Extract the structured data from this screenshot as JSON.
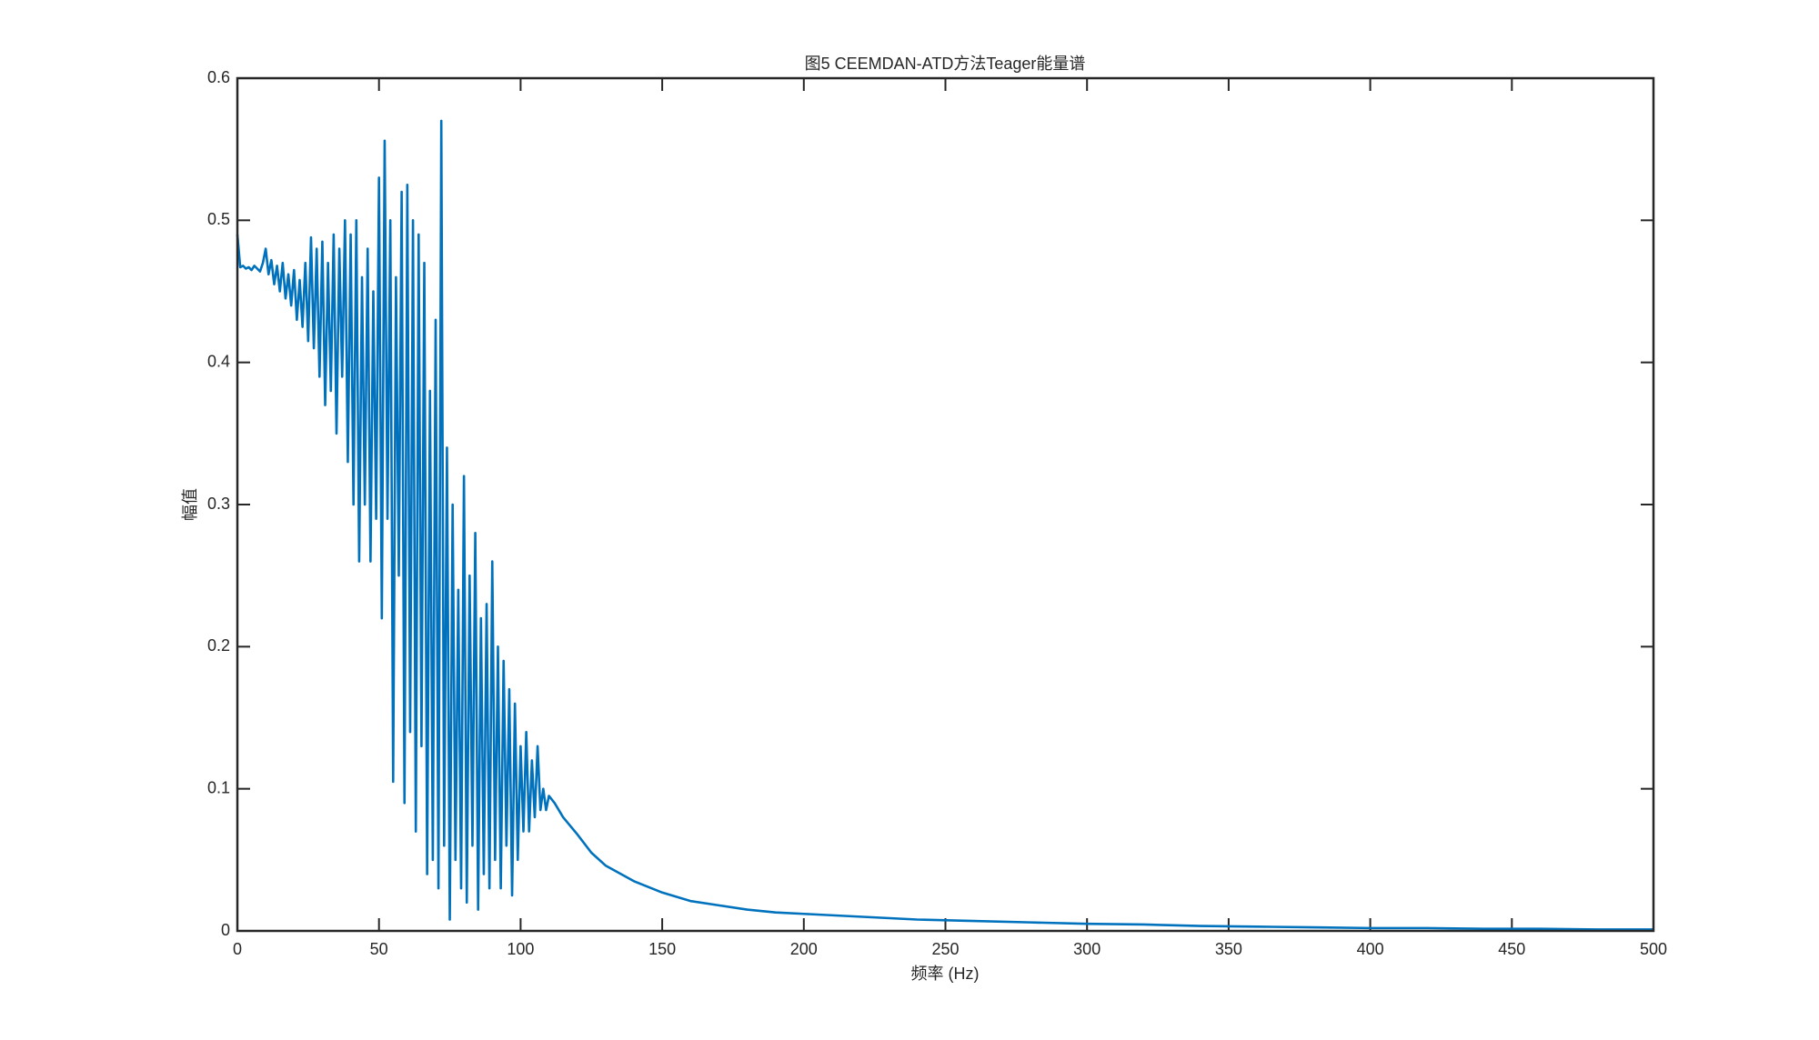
{
  "chart_data": {
    "type": "line",
    "title": "图5 CEEMDAN-ATD方法Teager能量谱",
    "xlabel": "频率 (Hz)",
    "ylabel": "幅值",
    "x": [
      0,
      1,
      2,
      3,
      4,
      5,
      6,
      7,
      8,
      9,
      10,
      11,
      12,
      13,
      14,
      15,
      16,
      17,
      18,
      19,
      20,
      21,
      22,
      23,
      24,
      25,
      26,
      27,
      28,
      29,
      30,
      31,
      32,
      33,
      34,
      35,
      36,
      37,
      38,
      39,
      40,
      41,
      42,
      43,
      44,
      45,
      46,
      47,
      48,
      49,
      50,
      51,
      52,
      53,
      54,
      55,
      56,
      57,
      58,
      59,
      60,
      61,
      62,
      63,
      64,
      65,
      66,
      67,
      68,
      69,
      70,
      71,
      72,
      73,
      74,
      75,
      76,
      77,
      78,
      79,
      80,
      81,
      82,
      83,
      84,
      85,
      86,
      87,
      88,
      89,
      90,
      91,
      92,
      93,
      94,
      95,
      96,
      97,
      98,
      99,
      100,
      101,
      102,
      103,
      104,
      105,
      106,
      107,
      108,
      109,
      110,
      112,
      115,
      120,
      125,
      130,
      140,
      150,
      160,
      170,
      180,
      190,
      200,
      220,
      240,
      260,
      280,
      300,
      320,
      340,
      360,
      380,
      400,
      420,
      440,
      460,
      480,
      500
    ],
    "series": [
      {
        "color": "#0072BD",
        "values": [
          0.49,
          0.467,
          0.468,
          0.466,
          0.467,
          0.465,
          0.468,
          0.466,
          0.464,
          0.47,
          0.48,
          0.462,
          0.472,
          0.455,
          0.468,
          0.45,
          0.47,
          0.445,
          0.462,
          0.44,
          0.465,
          0.43,
          0.458,
          0.425,
          0.47,
          0.415,
          0.488,
          0.41,
          0.48,
          0.39,
          0.485,
          0.37,
          0.47,
          0.38,
          0.49,
          0.35,
          0.48,
          0.39,
          0.5,
          0.33,
          0.49,
          0.3,
          0.5,
          0.26,
          0.46,
          0.3,
          0.48,
          0.26,
          0.45,
          0.29,
          0.53,
          0.22,
          0.556,
          0.29,
          0.5,
          0.105,
          0.46,
          0.25,
          0.52,
          0.09,
          0.525,
          0.14,
          0.5,
          0.07,
          0.49,
          0.13,
          0.47,
          0.04,
          0.38,
          0.05,
          0.43,
          0.03,
          0.57,
          0.06,
          0.34,
          0.008,
          0.3,
          0.05,
          0.24,
          0.03,
          0.32,
          0.02,
          0.25,
          0.06,
          0.28,
          0.015,
          0.22,
          0.04,
          0.23,
          0.03,
          0.26,
          0.05,
          0.2,
          0.03,
          0.19,
          0.06,
          0.17,
          0.025,
          0.16,
          0.05,
          0.13,
          0.07,
          0.14,
          0.07,
          0.12,
          0.08,
          0.13,
          0.085,
          0.1,
          0.085,
          0.095,
          0.09,
          0.08,
          0.068,
          0.055,
          0.046,
          0.035,
          0.027,
          0.021,
          0.018,
          0.015,
          0.013,
          0.012,
          0.01,
          0.008,
          0.007,
          0.006,
          0.005,
          0.0045,
          0.0035,
          0.003,
          0.0025,
          0.002,
          0.002,
          0.0015,
          0.0015,
          0.001,
          0.001
        ]
      }
    ],
    "xlim": [
      0,
      500
    ],
    "xticks": [
      0,
      50,
      100,
      150,
      200,
      250,
      300,
      350,
      400,
      450,
      500
    ],
    "ylim": [
      0,
      0.6
    ],
    "yticks": [
      0,
      0.1,
      0.2,
      0.3,
      0.4,
      0.5,
      0.6
    ]
  }
}
